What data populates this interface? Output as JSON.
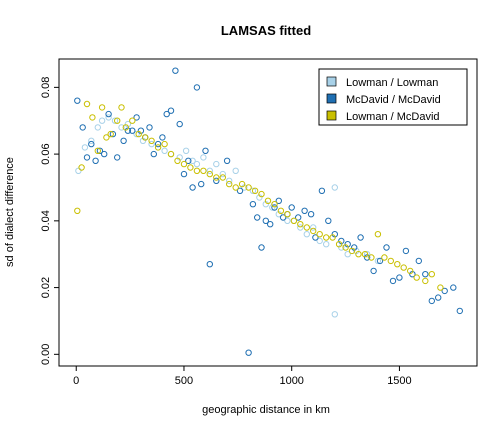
{
  "chart_data": {
    "type": "scatter",
    "title": "LAMSAS fitted",
    "xlabel": "geographic distance in km",
    "ylabel": "sd of dialect difference",
    "xlim": [
      -80,
      1860
    ],
    "ylim": [
      -0.0035,
      0.0885
    ],
    "x_ticks": [
      0,
      500,
      1000,
      1500
    ],
    "x_tick_labels": [
      "0",
      "500",
      "1000",
      "1500"
    ],
    "y_ticks": [
      0.0,
      0.02,
      0.04,
      0.06,
      0.08
    ],
    "y_tick_labels": [
      "0.00",
      "0.02",
      "0.04",
      "0.06",
      "0.08"
    ],
    "legend_position": "top-right",
    "grid": false,
    "series": [
      {
        "name": "Lowman / Lowman",
        "color": "#a8d1e8",
        "x": [
          10,
          40,
          70,
          100,
          120,
          150,
          180,
          210,
          240,
          280,
          310,
          350,
          380,
          410,
          440,
          480,
          510,
          540,
          560,
          590,
          620,
          650,
          680,
          710,
          740,
          780,
          820,
          850,
          880,
          910,
          940,
          980,
          1010,
          1040,
          1070,
          1100,
          1130,
          1160,
          1200,
          1230,
          1260,
          1300,
          1350,
          1400,
          1200
        ],
        "y": [
          0.055,
          0.062,
          0.064,
          0.068,
          0.07,
          0.071,
          0.07,
          0.068,
          0.069,
          0.066,
          0.064,
          0.063,
          0.062,
          0.061,
          0.06,
          0.059,
          0.061,
          0.058,
          0.057,
          0.059,
          0.055,
          0.057,
          0.054,
          0.052,
          0.055,
          0.05,
          0.049,
          0.047,
          0.045,
          0.044,
          0.042,
          0.04,
          0.04,
          0.038,
          0.036,
          0.038,
          0.034,
          0.033,
          0.05,
          0.032,
          0.03,
          0.031,
          0.03,
          0.028,
          0.012
        ]
      },
      {
        "name": "McDavid / McDavid",
        "color": "#1f6fb2",
        "x": [
          5,
          30,
          50,
          70,
          90,
          110,
          130,
          150,
          170,
          190,
          220,
          240,
          260,
          280,
          300,
          320,
          340,
          360,
          380,
          400,
          420,
          440,
          460,
          480,
          500,
          520,
          540,
          560,
          580,
          600,
          620,
          650,
          700,
          760,
          800,
          820,
          840,
          860,
          880,
          900,
          920,
          940,
          960,
          980,
          1000,
          1030,
          1060,
          1090,
          1110,
          1140,
          1170,
          1200,
          1230,
          1260,
          1290,
          1320,
          1350,
          1380,
          1410,
          1440,
          1470,
          1500,
          1530,
          1560,
          1590,
          1620,
          1650,
          1680,
          1710,
          1750,
          1780
        ],
        "y": [
          0.076,
          0.068,
          0.059,
          0.063,
          0.058,
          0.061,
          0.06,
          0.072,
          0.066,
          0.059,
          0.064,
          0.067,
          0.067,
          0.071,
          0.067,
          0.065,
          0.068,
          0.06,
          0.063,
          0.065,
          0.072,
          0.073,
          0.085,
          0.069,
          0.054,
          0.058,
          0.05,
          0.08,
          0.051,
          0.061,
          0.027,
          0.052,
          0.058,
          0.049,
          0.0005,
          0.045,
          0.041,
          0.032,
          0.04,
          0.039,
          0.044,
          0.046,
          0.041,
          0.042,
          0.044,
          0.041,
          0.043,
          0.042,
          0.035,
          0.049,
          0.04,
          0.036,
          0.034,
          0.033,
          0.032,
          0.035,
          0.029,
          0.025,
          0.028,
          0.032,
          0.022,
          0.023,
          0.031,
          0.024,
          0.028,
          0.024,
          0.016,
          0.017,
          0.019,
          0.02,
          0.013
        ]
      },
      {
        "name": "Lowman / McDavid",
        "color": "#c9bf00",
        "x": [
          5,
          25,
          50,
          75,
          100,
          120,
          140,
          160,
          190,
          210,
          230,
          260,
          290,
          320,
          350,
          380,
          410,
          440,
          470,
          500,
          530,
          560,
          590,
          620,
          650,
          680,
          710,
          740,
          770,
          800,
          830,
          860,
          890,
          920,
          950,
          980,
          1010,
          1040,
          1070,
          1100,
          1130,
          1160,
          1190,
          1220,
          1250,
          1280,
          1310,
          1340,
          1370,
          1400,
          1430,
          1460,
          1490,
          1520,
          1550,
          1580,
          1620,
          1650,
          1690
        ],
        "y": [
          0.043,
          0.056,
          0.075,
          0.071,
          0.061,
          0.074,
          0.065,
          0.066,
          0.07,
          0.074,
          0.068,
          0.07,
          0.066,
          0.065,
          0.064,
          0.062,
          0.063,
          0.06,
          0.058,
          0.057,
          0.056,
          0.055,
          0.055,
          0.054,
          0.053,
          0.053,
          0.051,
          0.05,
          0.051,
          0.05,
          0.049,
          0.048,
          0.046,
          0.045,
          0.043,
          0.042,
          0.04,
          0.039,
          0.038,
          0.037,
          0.036,
          0.035,
          0.035,
          0.033,
          0.032,
          0.031,
          0.03,
          0.03,
          0.029,
          0.036,
          0.029,
          0.028,
          0.027,
          0.026,
          0.025,
          0.023,
          0.022,
          0.024,
          0.02
        ]
      }
    ]
  }
}
